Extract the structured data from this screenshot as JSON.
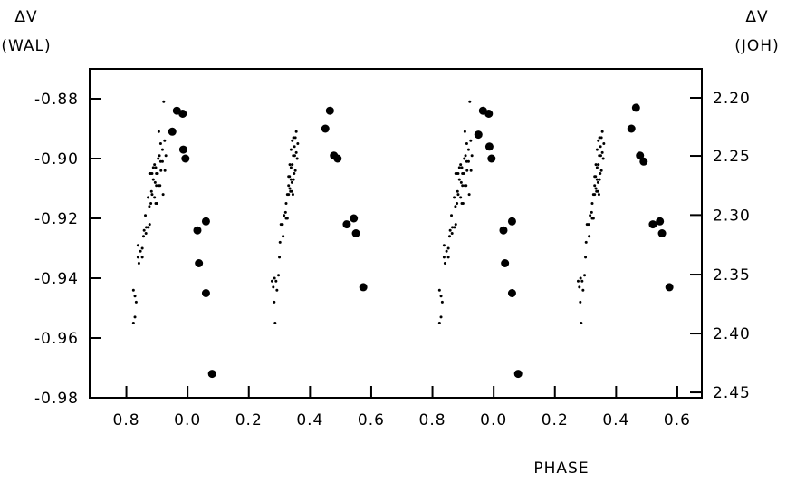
{
  "chart_data": {
    "type": "scatter",
    "title": "",
    "xlabel": "PHASE",
    "ylabel_left": [
      "ΔV",
      "(WAL)"
    ],
    "ylabel_right": [
      "ΔV",
      "(JOH)"
    ],
    "x_ticks": [
      {
        "pos": 0.8,
        "label": "0.8"
      },
      {
        "pos": 1.0,
        "label": "0.0"
      },
      {
        "pos": 1.2,
        "label": "0.2"
      },
      {
        "pos": 1.4,
        "label": "0.4"
      },
      {
        "pos": 1.6,
        "label": "0.6"
      },
      {
        "pos": 1.8,
        "label": "0.8"
      },
      {
        "pos": 2.0,
        "label": "0.0"
      },
      {
        "pos": 2.2,
        "label": "0.2"
      },
      {
        "pos": 2.4,
        "label": "0.4"
      },
      {
        "pos": 2.6,
        "label": "0.6"
      }
    ],
    "xlim": [
      0.68,
      2.68
    ],
    "ylim_left": [
      -0.98,
      -0.87
    ],
    "y_ticks_left": [
      {
        "v": -0.88,
        "label": "-0.88"
      },
      {
        "v": -0.9,
        "label": "-0.90"
      },
      {
        "v": -0.92,
        "label": "-0.92"
      },
      {
        "v": -0.94,
        "label": "-0.94"
      },
      {
        "v": -0.96,
        "label": "-0.96"
      },
      {
        "v": -0.98,
        "label": "-0.98"
      }
    ],
    "y_ticks_right": [
      {
        "v": -0.8797,
        "label": "2.20"
      },
      {
        "v": -0.8991,
        "label": "2.25"
      },
      {
        "v": -0.9189,
        "label": "2.30"
      },
      {
        "v": -0.9388,
        "label": "2.35"
      },
      {
        "v": -0.9585,
        "label": "2.40"
      },
      {
        "v": -0.9782,
        "label": "2.45"
      }
    ],
    "series": [
      {
        "marker": "small",
        "points": [
          [
            0.823,
            -0.955
          ],
          [
            0.828,
            -0.953
          ],
          [
            0.823,
            -0.944
          ],
          [
            0.828,
            -0.946
          ],
          [
            0.832,
            -0.948
          ],
          [
            0.838,
            -0.933
          ],
          [
            0.841,
            -0.935
          ],
          [
            0.838,
            -0.929
          ],
          [
            0.846,
            -0.931
          ],
          [
            0.852,
            -0.93
          ],
          [
            0.852,
            -0.933
          ],
          [
            0.856,
            -0.926
          ],
          [
            0.858,
            -0.924
          ],
          [
            0.864,
            -0.925
          ],
          [
            0.865,
            -0.923
          ],
          [
            0.872,
            -0.923
          ],
          [
            0.876,
            -0.922
          ],
          [
            0.862,
            -0.919
          ],
          [
            0.875,
            -0.916
          ],
          [
            0.871,
            -0.913
          ],
          [
            0.882,
            -0.911
          ],
          [
            0.876,
            -0.905
          ],
          [
            0.88,
            -0.905
          ],
          [
            0.884,
            -0.905
          ],
          [
            0.888,
            -0.907
          ],
          [
            0.888,
            -0.903
          ],
          [
            0.892,
            -0.902
          ],
          [
            0.896,
            -0.903
          ],
          [
            0.898,
            -0.905
          ],
          [
            0.902,
            -0.905
          ],
          [
            0.894,
            -0.908
          ],
          [
            0.898,
            -0.909
          ],
          [
            0.904,
            -0.9
          ],
          [
            0.908,
            -0.899
          ],
          [
            0.884,
            -0.912
          ],
          [
            0.892,
            -0.913
          ],
          [
            0.896,
            -0.915
          ],
          [
            0.906,
            -0.909
          ],
          [
            0.91,
            -0.909
          ],
          [
            0.913,
            -0.904
          ],
          [
            0.912,
            -0.895
          ],
          [
            0.918,
            -0.897
          ],
          [
            0.925,
            -0.894
          ],
          [
            0.929,
            -0.899
          ],
          [
            0.912,
            -0.901
          ],
          [
            0.918,
            -0.901
          ],
          [
            0.88,
            -0.915
          ],
          [
            0.9,
            -0.915
          ],
          [
            0.906,
            -0.891
          ],
          [
            0.922,
            -0.881
          ],
          [
            0.926,
            -0.904
          ],
          [
            0.92,
            -0.912
          ],
          [
            1.823,
            -0.955
          ],
          [
            1.828,
            -0.953
          ],
          [
            1.823,
            -0.944
          ],
          [
            1.828,
            -0.946
          ],
          [
            1.832,
            -0.948
          ],
          [
            1.838,
            -0.933
          ],
          [
            1.841,
            -0.935
          ],
          [
            1.838,
            -0.929
          ],
          [
            1.846,
            -0.931
          ],
          [
            1.852,
            -0.93
          ],
          [
            1.852,
            -0.933
          ],
          [
            1.856,
            -0.926
          ],
          [
            1.858,
            -0.924
          ],
          [
            1.864,
            -0.925
          ],
          [
            1.865,
            -0.923
          ],
          [
            1.872,
            -0.923
          ],
          [
            1.876,
            -0.922
          ],
          [
            1.862,
            -0.919
          ],
          [
            1.875,
            -0.916
          ],
          [
            1.871,
            -0.913
          ],
          [
            1.882,
            -0.911
          ],
          [
            1.876,
            -0.905
          ],
          [
            1.88,
            -0.905
          ],
          [
            1.884,
            -0.905
          ],
          [
            1.888,
            -0.907
          ],
          [
            1.888,
            -0.903
          ],
          [
            1.892,
            -0.902
          ],
          [
            1.896,
            -0.903
          ],
          [
            1.898,
            -0.905
          ],
          [
            1.902,
            -0.905
          ],
          [
            1.894,
            -0.908
          ],
          [
            1.898,
            -0.909
          ],
          [
            1.904,
            -0.9
          ],
          [
            1.908,
            -0.899
          ],
          [
            1.884,
            -0.912
          ],
          [
            1.892,
            -0.913
          ],
          [
            1.896,
            -0.915
          ],
          [
            1.906,
            -0.909
          ],
          [
            1.91,
            -0.909
          ],
          [
            1.913,
            -0.904
          ],
          [
            1.912,
            -0.895
          ],
          [
            1.918,
            -0.897
          ],
          [
            1.925,
            -0.894
          ],
          [
            1.929,
            -0.899
          ],
          [
            1.912,
            -0.901
          ],
          [
            1.918,
            -0.901
          ],
          [
            1.88,
            -0.915
          ],
          [
            1.9,
            -0.915
          ],
          [
            1.906,
            -0.891
          ],
          [
            1.922,
            -0.881
          ],
          [
            1.926,
            -0.904
          ],
          [
            1.92,
            -0.912
          ],
          [
            1.276,
            -0.941
          ],
          [
            1.28,
            -0.943
          ],
          [
            1.284,
            -0.94
          ],
          [
            1.289,
            -0.941
          ],
          [
            1.283,
            -0.948
          ],
          [
            1.286,
            -0.955
          ],
          [
            1.292,
            -0.944
          ],
          [
            1.297,
            -0.939
          ],
          [
            1.3,
            -0.933
          ],
          [
            1.302,
            -0.928
          ],
          [
            1.305,
            -0.922
          ],
          [
            1.31,
            -0.922
          ],
          [
            1.312,
            -0.926
          ],
          [
            1.315,
            -0.919
          ],
          [
            1.32,
            -0.918
          ],
          [
            1.322,
            -0.92
          ],
          [
            1.326,
            -0.92
          ],
          [
            1.322,
            -0.915
          ],
          [
            1.326,
            -0.912
          ],
          [
            1.33,
            -0.909
          ],
          [
            1.333,
            -0.906
          ],
          [
            1.336,
            -0.911
          ],
          [
            1.338,
            -0.907
          ],
          [
            1.341,
            -0.908
          ],
          [
            1.33,
            -0.906
          ],
          [
            1.334,
            -0.902
          ],
          [
            1.338,
            -0.903
          ],
          [
            1.342,
            -0.902
          ],
          [
            1.338,
            -0.897
          ],
          [
            1.342,
            -0.894
          ],
          [
            1.346,
            -0.893
          ],
          [
            1.349,
            -0.896
          ],
          [
            1.352,
            -0.893
          ],
          [
            1.355,
            -0.891
          ],
          [
            1.345,
            -0.899
          ],
          [
            1.35,
            -0.899
          ],
          [
            1.355,
            -0.898
          ],
          [
            1.34,
            -0.911
          ],
          [
            1.344,
            -0.912
          ],
          [
            1.334,
            -0.91
          ],
          [
            1.33,
            -0.912
          ],
          [
            1.348,
            -0.905
          ],
          [
            1.352,
            -0.904
          ],
          [
            1.358,
            -0.9
          ],
          [
            1.36,
            -0.895
          ],
          [
            1.346,
            -0.907
          ],
          [
            2.276,
            -0.941
          ],
          [
            2.28,
            -0.943
          ],
          [
            2.284,
            -0.94
          ],
          [
            2.289,
            -0.941
          ],
          [
            2.283,
            -0.948
          ],
          [
            2.286,
            -0.955
          ],
          [
            2.292,
            -0.944
          ],
          [
            2.297,
            -0.939
          ],
          [
            2.3,
            -0.933
          ],
          [
            2.302,
            -0.928
          ],
          [
            2.305,
            -0.922
          ],
          [
            2.31,
            -0.922
          ],
          [
            2.312,
            -0.926
          ],
          [
            2.315,
            -0.919
          ],
          [
            2.32,
            -0.918
          ],
          [
            2.322,
            -0.92
          ],
          [
            2.326,
            -0.92
          ],
          [
            2.322,
            -0.915
          ],
          [
            2.326,
            -0.912
          ],
          [
            2.33,
            -0.909
          ],
          [
            2.333,
            -0.906
          ],
          [
            2.336,
            -0.911
          ],
          [
            2.338,
            -0.907
          ],
          [
            2.341,
            -0.908
          ],
          [
            2.33,
            -0.906
          ],
          [
            2.334,
            -0.902
          ],
          [
            2.338,
            -0.903
          ],
          [
            2.342,
            -0.902
          ],
          [
            2.338,
            -0.897
          ],
          [
            2.342,
            -0.894
          ],
          [
            2.346,
            -0.893
          ],
          [
            2.349,
            -0.896
          ],
          [
            2.352,
            -0.893
          ],
          [
            2.355,
            -0.891
          ],
          [
            2.345,
            -0.899
          ],
          [
            2.35,
            -0.899
          ],
          [
            2.355,
            -0.898
          ],
          [
            2.34,
            -0.911
          ],
          [
            2.344,
            -0.912
          ],
          [
            2.334,
            -0.91
          ],
          [
            2.33,
            -0.912
          ],
          [
            2.348,
            -0.905
          ],
          [
            2.352,
            -0.904
          ],
          [
            2.358,
            -0.9
          ],
          [
            2.36,
            -0.895
          ],
          [
            2.346,
            -0.907
          ]
        ]
      },
      {
        "marker": "large",
        "points": [
          [
            0.95,
            -0.891
          ],
          [
            0.965,
            -0.884
          ],
          [
            0.984,
            -0.885
          ],
          [
            0.986,
            -0.897
          ],
          [
            0.993,
            -0.9
          ],
          [
            1.032,
            -0.924
          ],
          [
            1.06,
            -0.921
          ],
          [
            1.037,
            -0.935
          ],
          [
            1.06,
            -0.945
          ],
          [
            1.08,
            -0.972
          ],
          [
            1.45,
            -0.89
          ],
          [
            1.465,
            -0.884
          ],
          [
            1.478,
            -0.899
          ],
          [
            1.49,
            -0.9
          ],
          [
            1.52,
            -0.922
          ],
          [
            1.543,
            -0.92
          ],
          [
            1.55,
            -0.925
          ],
          [
            1.574,
            -0.943
          ],
          [
            1.95,
            -0.892
          ],
          [
            1.965,
            -0.884
          ],
          [
            1.984,
            -0.885
          ],
          [
            1.986,
            -0.896
          ],
          [
            1.993,
            -0.9
          ],
          [
            2.032,
            -0.924
          ],
          [
            2.06,
            -0.921
          ],
          [
            2.037,
            -0.935
          ],
          [
            2.06,
            -0.945
          ],
          [
            2.08,
            -0.972
          ],
          [
            2.45,
            -0.89
          ],
          [
            2.465,
            -0.883
          ],
          [
            2.478,
            -0.899
          ],
          [
            2.49,
            -0.901
          ],
          [
            2.52,
            -0.922
          ],
          [
            2.543,
            -0.921
          ],
          [
            2.55,
            -0.925
          ],
          [
            2.574,
            -0.943
          ]
        ]
      }
    ]
  }
}
